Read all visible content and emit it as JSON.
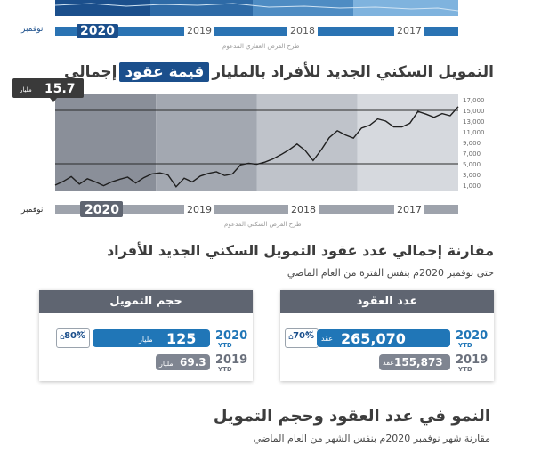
{
  "top_chart": {
    "years": [
      "2020",
      "2019",
      "2018",
      "2017"
    ],
    "month_label": "نوفمبر",
    "source": "طرح القرض العقاري المدعوم"
  },
  "chart_title": {
    "before": "إجمالي",
    "highlight": "قيمة عقود",
    "after": "التمويل السكني الجديد للأفراد بالمليار"
  },
  "chart_data": {
    "type": "line",
    "title": "إجمالي قيمة عقود التمويل السكني الجديد للأفراد بالمليار",
    "y_ticks": [
      "17,000",
      "15,000",
      "13,000",
      "11,000",
      "9,000",
      "7,000",
      "5,000",
      "3,000",
      "1,000"
    ],
    "ylim": [
      0,
      18000
    ],
    "years": [
      "2020",
      "2019",
      "2018",
      "2017"
    ],
    "month_label": "نوفمبر",
    "source": "طرح القرض السكني المدعوم",
    "latest_value": "15.7",
    "latest_unit": "مليار",
    "reference_lines": [
      15000,
      5000
    ],
    "series": [
      {
        "values": [
          1000,
          1700,
          2600,
          1200,
          2200,
          1600,
          900,
          1600,
          2100,
          2500,
          1400,
          2400,
          3100,
          3300,
          2900,
          700,
          2300,
          1600,
          2700,
          3200,
          3500,
          2800,
          3100,
          4800,
          5100,
          4900,
          5300,
          5900,
          6700,
          7600,
          8700,
          7500,
          5600,
          7600,
          9900,
          11200,
          10400,
          9800,
          11700,
          12200,
          13400,
          13000,
          11900,
          11900,
          12600,
          14800,
          14300,
          13700,
          14400,
          14000,
          15700
        ]
      }
    ]
  },
  "comparison": {
    "title": "مقارنة إجمالي عدد عقود التمويل السكني الجديد للأفراد",
    "subtitle": "حتى نوفمبر 2020م بنفس الفترة من العام الماضي",
    "contracts_card": {
      "header": "عدد العقود",
      "current_year": "2020",
      "current_value": "265,070",
      "unit": "عقد",
      "previous_year": "2019",
      "previous_value": "155,873",
      "ytd": "YTD",
      "growth_word": "نمو",
      "growth": "70%"
    },
    "financing_card": {
      "header": "حجم التمويل",
      "current_year": "2020",
      "current_value": "125",
      "unit": "مليار",
      "previous_year": "2019",
      "previous_value": "69.3",
      "ytd": "YTD",
      "growth_word": "نمو",
      "growth": "80%"
    }
  },
  "growth_section": {
    "title": "النمو في عدد العقود وحجم التمويل",
    "subtitle": "مقارنة شهر نوفمبر 2020م بنفس الشهر من العام الماضي"
  },
  "colors": {
    "accent": "#1b4f8c",
    "bar_blue": "#2076b7",
    "bar_gray": "#7f8591",
    "header_gray": "#5f6571"
  }
}
